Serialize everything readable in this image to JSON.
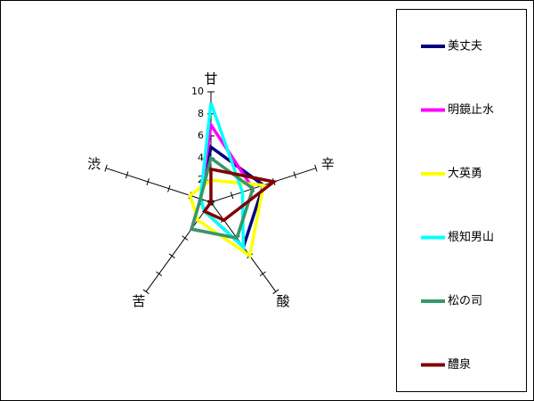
{
  "chart_data": {
    "type": "radar",
    "categories": [
      "甘",
      "辛",
      "酸",
      "苦",
      "渋"
    ],
    "rlim": [
      0,
      10
    ],
    "rticks": [
      0,
      2,
      4,
      6,
      8,
      10
    ],
    "series": [
      {
        "name": "美丈夫",
        "color": "#000080",
        "values": [
          5,
          5,
          5,
          1,
          1
        ]
      },
      {
        "name": "明鏡止水",
        "color": "#ff00ff",
        "values": [
          7,
          4,
          4,
          3,
          1
        ]
      },
      {
        "name": "大英勇",
        "color": "#ffff00",
        "values": [
          2,
          5,
          6,
          2,
          2
        ]
      },
      {
        "name": "根知男山",
        "color": "#00ffff",
        "values": [
          9,
          3,
          5,
          1,
          1
        ]
      },
      {
        "name": "松の司",
        "color": "#339966",
        "values": [
          4,
          4,
          4,
          3,
          1
        ]
      },
      {
        "name": "醴泉",
        "color": "#800000",
        "values": [
          3,
          6,
          2,
          1,
          0
        ]
      }
    ]
  }
}
